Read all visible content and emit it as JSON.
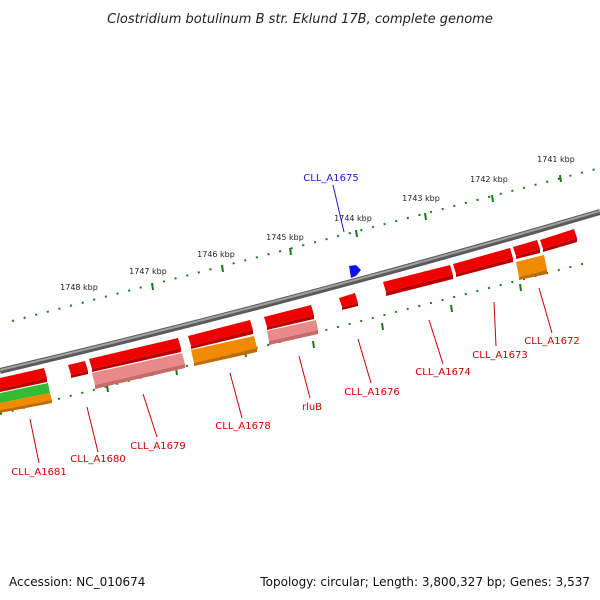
{
  "title": "Clostridium botulinum B str. Eklund 17B, complete genome",
  "footer": {
    "accession": "Accession: NC_010674",
    "topology": "Topology: circular; Length: 3,800,327 bp; Genes: 3,537"
  },
  "colors": {
    "backbone": "#808080",
    "tick": "#1a7a1a",
    "red_gene": "#ee0000",
    "pink_gene": "#e88a8a",
    "orange_gene": "#f08a00",
    "green_gene": "#33bb33",
    "blue_marker": "#1010ee",
    "label_red": "#cc0000",
    "label_blue": "#1a1acc"
  },
  "scale": {
    "labels": [
      "1741 kbp",
      "1742 kbp",
      "1743 kbp",
      "1744 kbp",
      "1745 kbp",
      "1746 kbp",
      "1747 kbp",
      "1748 kbp"
    ]
  },
  "genes": [
    {
      "label": "CLL_A1672"
    },
    {
      "label": "CLL_A1673"
    },
    {
      "label": "CLL_A1674"
    },
    {
      "label": "CLL_A1675"
    },
    {
      "label": "CLL_A1676"
    },
    {
      "label": "rluB"
    },
    {
      "label": "CLL_A1678"
    },
    {
      "label": "CLL_A1679"
    },
    {
      "label": "CLL_A1680"
    },
    {
      "label": "CLL_A1681"
    }
  ]
}
